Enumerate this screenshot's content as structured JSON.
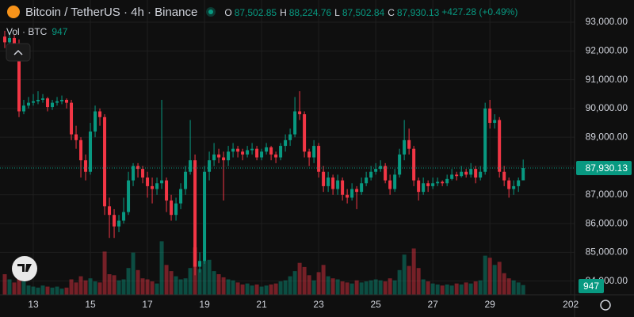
{
  "chart_data": {
    "type": "candlestick",
    "header": {
      "title": "Bitcoin / TetherUS · 4h · Binance",
      "ohlc": [
        {
          "label": "O",
          "value": "87,502.85"
        },
        {
          "label": "H",
          "value": "88,224.76"
        },
        {
          "label": "L",
          "value": "87,502.84"
        },
        {
          "label": "C",
          "value": "87,930.13"
        }
      ],
      "change": "+427.28 (+0.49%)"
    },
    "volume_label": "Vol · BTC",
    "up_color": "#089981",
    "down_color": "#f23645",
    "xlim": [
      -1,
      119.8
    ],
    "xticks": [
      {
        "value": 6,
        "label": "13"
      },
      {
        "value": 18,
        "label": "15"
      },
      {
        "value": 30,
        "label": "17"
      },
      {
        "value": 42,
        "label": "19"
      },
      {
        "value": 54,
        "label": "21"
      },
      {
        "value": 66,
        "label": "23"
      },
      {
        "value": 78,
        "label": "25"
      },
      {
        "value": 90,
        "label": "27"
      },
      {
        "value": 102,
        "label": "29"
      },
      {
        "value": 119,
        "label": "202"
      }
    ],
    "ylim": [
      83523,
      93771
    ],
    "yticks": [
      {
        "value": 84000,
        "label": "84,000.00"
      },
      {
        "value": 85000,
        "label": "85,000.00"
      },
      {
        "value": 86000,
        "label": "86,000.00"
      },
      {
        "value": 87000,
        "label": "87,000.00"
      },
      {
        "value": 88000,
        "label": "88,000.00"
      },
      {
        "value": 89000,
        "label": "89,000.00"
      },
      {
        "value": 90000,
        "label": "90,000.00"
      },
      {
        "value": 91000,
        "label": "91,000.00"
      },
      {
        "value": 92000,
        "label": "92,000.00"
      },
      {
        "value": 93000,
        "label": "93,000.00"
      }
    ],
    "last_price": {
      "value": 87930.13,
      "label": "87,930.13"
    },
    "grid": true,
    "candles": [
      [
        92500,
        92700,
        92100,
        92300
      ],
      [
        92300,
        92650,
        92200,
        92450
      ],
      [
        92450,
        92550,
        92100,
        92200
      ],
      [
        92200,
        92400,
        89700,
        89900
      ],
      [
        89900,
        90300,
        89800,
        90100
      ],
      [
        90100,
        90400,
        90000,
        90200
      ],
      [
        90200,
        90500,
        90100,
        90250
      ],
      [
        90250,
        90600,
        90150,
        90300
      ],
      [
        90300,
        90500,
        90200,
        90350
      ],
      [
        90350,
        90400,
        89900,
        90050
      ],
      [
        90050,
        90300,
        89950,
        90200
      ],
      [
        90200,
        90400,
        90100,
        90250
      ],
      [
        90250,
        90450,
        90150,
        90300
      ],
      [
        90300,
        90350,
        90000,
        90200
      ],
      [
        90200,
        90300,
        88900,
        89100
      ],
      [
        89100,
        89400,
        88600,
        88900
      ],
      [
        88900,
        89000,
        87600,
        88200
      ],
      [
        88200,
        88400,
        87500,
        87800
      ],
      [
        87800,
        89500,
        87700,
        89200
      ],
      [
        89200,
        90100,
        89000,
        89900
      ],
      [
        89900,
        90000,
        89400,
        89700
      ],
      [
        89700,
        89800,
        86300,
        86600
      ],
      [
        86600,
        86900,
        85500,
        86300
      ],
      [
        86300,
        86500,
        85500,
        85900
      ],
      [
        85900,
        86300,
        85700,
        86100
      ],
      [
        86100,
        86900,
        86000,
        86400
      ],
      [
        86400,
        87800,
        86300,
        87500
      ],
      [
        87500,
        88100,
        87300,
        88000
      ],
      [
        88000,
        88100,
        87600,
        87900
      ],
      [
        87900,
        88000,
        87400,
        87600
      ],
      [
        87600,
        87800,
        86900,
        87300
      ],
      [
        87300,
        87600,
        86700,
        87200
      ],
      [
        87200,
        87600,
        87000,
        87400
      ],
      [
        87400,
        90300,
        87200,
        87500
      ],
      [
        87500,
        87600,
        86400,
        86800
      ],
      [
        86800,
        87000,
        86100,
        86300
      ],
      [
        86300,
        86900,
        86100,
        86700
      ],
      [
        86700,
        87400,
        86500,
        87200
      ],
      [
        87200,
        88000,
        87000,
        87800
      ],
      [
        87800,
        89600,
        87700,
        88200
      ],
      [
        88200,
        88400,
        84200,
        84500
      ],
      [
        84500,
        85000,
        84300,
        84700
      ],
      [
        84700,
        88000,
        84600,
        87800
      ],
      [
        87800,
        88500,
        87500,
        88200
      ],
      [
        88200,
        88800,
        88000,
        88400
      ],
      [
        88400,
        88600,
        88100,
        88300
      ],
      [
        88300,
        88500,
        86800,
        88200
      ],
      [
        88200,
        88700,
        88000,
        88500
      ],
      [
        88500,
        88800,
        88300,
        88600
      ],
      [
        88600,
        88700,
        88300,
        88500
      ],
      [
        88500,
        88600,
        88200,
        88400
      ],
      [
        88400,
        88700,
        88300,
        88550
      ],
      [
        88550,
        88800,
        88400,
        88600
      ],
      [
        88600,
        88700,
        88200,
        88300
      ],
      [
        88300,
        88600,
        88200,
        88500
      ],
      [
        88500,
        88800,
        88400,
        88650
      ],
      [
        88650,
        88700,
        88200,
        88400
      ],
      [
        88400,
        88500,
        88100,
        88300
      ],
      [
        88300,
        88800,
        88200,
        88700
      ],
      [
        88700,
        89100,
        88500,
        88900
      ],
      [
        88900,
        89300,
        88700,
        89100
      ],
      [
        89100,
        90400,
        89000,
        89900
      ],
      [
        89900,
        90600,
        89600,
        89800
      ],
      [
        89800,
        89900,
        88300,
        88500
      ],
      [
        88500,
        88600,
        88000,
        88300
      ],
      [
        88300,
        88900,
        88100,
        88700
      ],
      [
        88700,
        88800,
        87600,
        87800
      ],
      [
        87800,
        88000,
        87100,
        87300
      ],
      [
        87300,
        87800,
        87100,
        87600
      ],
      [
        87600,
        87700,
        87000,
        87200
      ],
      [
        87200,
        87700,
        87000,
        87500
      ],
      [
        87500,
        87600,
        86800,
        87000
      ],
      [
        87000,
        87200,
        86700,
        86900
      ],
      [
        86900,
        87400,
        86800,
        87200
      ],
      [
        87200,
        87300,
        86500,
        87100
      ],
      [
        87100,
        87600,
        87000,
        87400
      ],
      [
        87400,
        87800,
        87300,
        87600
      ],
      [
        87600,
        88000,
        87500,
        87800
      ],
      [
        87800,
        88100,
        87700,
        87900
      ],
      [
        87900,
        88200,
        87800,
        88000
      ],
      [
        88000,
        88100,
        87400,
        87500
      ],
      [
        87500,
        87700,
        87000,
        87200
      ],
      [
        87200,
        87900,
        87100,
        87700
      ],
      [
        87700,
        88600,
        87600,
        88400
      ],
      [
        88400,
        89600,
        88200,
        88900
      ],
      [
        88900,
        89300,
        88400,
        88600
      ],
      [
        88600,
        88700,
        87300,
        87500
      ],
      [
        87500,
        87600,
        86800,
        87100
      ],
      [
        87100,
        87600,
        87000,
        87400
      ],
      [
        87400,
        87500,
        87100,
        87300
      ],
      [
        87300,
        87600,
        87200,
        87400
      ],
      [
        87400,
        87600,
        87300,
        87450
      ],
      [
        87450,
        87500,
        87300,
        87400
      ],
      [
        87400,
        87700,
        87300,
        87550
      ],
      [
        87550,
        87900,
        87500,
        87700
      ],
      [
        87700,
        87800,
        87500,
        87650
      ],
      [
        87650,
        88000,
        87600,
        87800
      ],
      [
        87800,
        87900,
        87600,
        87700
      ],
      [
        87700,
        88100,
        87600,
        87900
      ],
      [
        87900,
        88000,
        87400,
        87600
      ],
      [
        87600,
        88000,
        87500,
        87800
      ],
      [
        87800,
        90200,
        87700,
        90000
      ],
      [
        90000,
        90300,
        89300,
        89500
      ],
      [
        89500,
        89800,
        89300,
        89600
      ],
      [
        89600,
        89700,
        87600,
        87800
      ],
      [
        87800,
        88000,
        87300,
        87500
      ],
      [
        87500,
        87600,
        86900,
        87200
      ],
      [
        87200,
        87500,
        87000,
        87300
      ],
      [
        87300,
        87600,
        87100,
        87502.85
      ],
      [
        87502.85,
        88224.76,
        87502.84,
        87930.13
      ]
    ],
    "volume": [
      2000,
      1500,
      1200,
      2400,
      1300,
      900,
      800,
      700,
      900,
      800,
      700,
      800,
      600,
      700,
      1500,
      1200,
      1800,
      1400,
      1600,
      1300,
      1200,
      4200,
      2000,
      1900,
      1400,
      1500,
      2600,
      4100,
      2400,
      1600,
      1500,
      1300,
      1100,
      5200,
      2900,
      2300,
      1800,
      1500,
      1600,
      2600,
      4600,
      2500,
      3300,
      3400,
      2300,
      2000,
      1700,
      1500,
      1400,
      1200,
      1000,
      1100,
      900,
      1000,
      800,
      900,
      1000,
      1100,
      1300,
      1400,
      1800,
      2300,
      3100,
      2700,
      1900,
      1400,
      2200,
      2900,
      1800,
      1600,
      1500,
      1300,
      1200,
      1100,
      1400,
      1200,
      1300,
      1400,
      1500,
      1400,
      1300,
      1600,
      1400,
      2400,
      3900,
      2800,
      4500,
      2600,
      1500,
      1300,
      1100,
      1000,
      900,
      1000,
      900,
      1100,
      1000,
      1200,
      1100,
      1300,
      1400,
      3800,
      3600,
      2900,
      3200,
      2100,
      1600,
      1400,
      1200,
      947
    ]
  }
}
